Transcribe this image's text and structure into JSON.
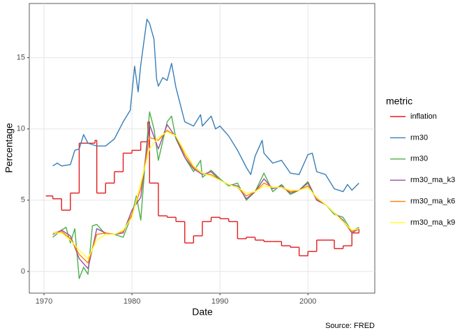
{
  "chart_data": {
    "type": "line",
    "x_label": "Date",
    "y_label": "Percentage",
    "caption": "Source: FRED",
    "legend_title": "metric",
    "legend_position": "right",
    "xlim": [
      1968.33,
      2007.6
    ],
    "ylim": [
      -1.52,
      18.8
    ],
    "xticks": [
      1970,
      1980,
      1990,
      2000
    ],
    "yticks": [
      0,
      5,
      10,
      15
    ],
    "grid": true,
    "series": [
      {
        "name": "inflation",
        "color": "#e41a1c",
        "step": true,
        "x": [
          1970.2,
          1971,
          1972,
          1973,
          1974,
          1975.8,
          1976,
          1977,
          1978,
          1979,
          1980,
          1981,
          1981.8,
          1982,
          1983,
          1984,
          1985,
          1986,
          1987,
          1988,
          1989,
          1990,
          1991,
          1992,
          1993,
          1994,
          1995,
          1996,
          1997,
          1998,
          1999,
          2000,
          2001,
          2002,
          2003,
          2004,
          2005,
          2005.8
        ],
        "values": [
          5.3,
          5.1,
          4.3,
          5.5,
          9.0,
          9.2,
          5.5,
          6.2,
          7.0,
          8.3,
          8.5,
          9.1,
          10.5,
          6.2,
          3.9,
          3.8,
          3.5,
          2.0,
          2.5,
          3.5,
          3.8,
          3.7,
          3.5,
          2.3,
          2.4,
          2.2,
          2.1,
          2.1,
          1.8,
          1.7,
          1.1,
          1.4,
          2.2,
          2.2,
          1.6,
          1.8,
          2.7,
          3.0
        ]
      },
      {
        "name": "rm30",
        "color": "#377eb8",
        "x": [
          1971,
          1971.5,
          1972,
          1973,
          1973.5,
          1974,
          1974.5,
          1975,
          1976,
          1977,
          1978,
          1979,
          1979.8,
          1980.3,
          1980.7,
          1981,
          1981.7,
          1982,
          1982.5,
          1982.8,
          1983,
          1983.5,
          1984,
          1984.5,
          1985,
          1986,
          1987,
          1987.8,
          1988,
          1989,
          1989.5,
          1990,
          1991,
          1992,
          1993,
          1993.5,
          1994,
          1994.8,
          1995,
          1996,
          1997,
          1998,
          1999,
          2000,
          2000.5,
          2001,
          2002,
          2003,
          2004,
          2004.5,
          2005,
          2005.8
        ],
        "values": [
          7.4,
          7.6,
          7.4,
          7.5,
          8.5,
          8.6,
          9.6,
          9.0,
          8.8,
          8.8,
          9.3,
          10.5,
          11.3,
          14.4,
          12.6,
          14.5,
          17.7,
          17.4,
          16.3,
          13.5,
          13.0,
          13.6,
          13.4,
          14.6,
          12.9,
          10.5,
          10.2,
          11.0,
          10.2,
          10.9,
          10.0,
          10.2,
          9.5,
          8.5,
          7.3,
          6.8,
          8.1,
          9.2,
          8.3,
          7.6,
          7.8,
          6.9,
          6.8,
          8.2,
          8.3,
          7.0,
          6.8,
          5.8,
          5.6,
          6.1,
          5.7,
          6.2
        ]
      },
      {
        "name": "rm30",
        "color": "#4daf4a",
        "x": [
          1971,
          1972,
          1972.5,
          1973,
          1973.5,
          1974,
          1974.5,
          1975,
          1975.5,
          1976,
          1977,
          1978,
          1979,
          1980,
          1980.5,
          1981,
          1981.5,
          1982,
          1982.5,
          1983,
          1984,
          1984.5,
          1985,
          1986,
          1987,
          1987.8,
          1988,
          1989,
          1990,
          1991,
          1992,
          1993,
          1994,
          1995,
          1996,
          1997,
          1998,
          1999,
          2000,
          2001,
          2002,
          2003,
          2004,
          2004.5,
          2005,
          2005.8
        ],
        "values": [
          2.4,
          2.9,
          3.1,
          2.0,
          3.0,
          -0.5,
          0.3,
          -0.2,
          3.2,
          3.3,
          2.6,
          2.6,
          2.4,
          4.0,
          5.3,
          3.6,
          7.7,
          11.2,
          10.0,
          7.8,
          10.5,
          10.9,
          9.3,
          8.0,
          7.0,
          7.8,
          6.6,
          7.1,
          6.5,
          6.0,
          6.2,
          5.0,
          5.6,
          6.9,
          5.6,
          6.1,
          5.4,
          5.7,
          6.3,
          5.0,
          4.7,
          4.0,
          3.8,
          3.3,
          2.8,
          3.1
        ]
      },
      {
        "name": "rm30_ma_k3",
        "color": "#984ea3",
        "x": [
          1971,
          1972,
          1973,
          1974,
          1975,
          1976,
          1977,
          1978,
          1979,
          1980,
          1981,
          1982,
          1983,
          1984,
          1985,
          1986,
          1987,
          1988,
          1989,
          1990,
          1991,
          1992,
          1993,
          1994,
          1995,
          1996,
          1997,
          1998,
          1999,
          2000,
          2001,
          2002,
          2003,
          2004,
          2005,
          2005.8
        ],
        "values": [
          2.6,
          2.9,
          2.5,
          0.9,
          0.2,
          3.0,
          2.7,
          2.6,
          2.7,
          4.3,
          5.2,
          10.3,
          8.6,
          10.3,
          9.4,
          8.0,
          7.2,
          6.8,
          7.0,
          6.4,
          6.1,
          6.0,
          5.1,
          5.6,
          6.5,
          5.8,
          6.0,
          5.5,
          5.7,
          6.2,
          5.0,
          4.7,
          4.1,
          3.6,
          2.7,
          3.0
        ]
      },
      {
        "name": "rm30_ma_k6",
        "color": "#ff7f00",
        "x": [
          1971,
          1972,
          1973,
          1974,
          1975,
          1976,
          1977,
          1978,
          1979,
          1980,
          1981,
          1982,
          1983,
          1984,
          1985,
          1986,
          1987,
          1988,
          1989,
          1990,
          1991,
          1992,
          1993,
          1994,
          1995,
          1996,
          1997,
          1998,
          1999,
          2000,
          2001,
          2002,
          2003,
          2004,
          2005,
          2005.8
        ],
        "values": [
          2.7,
          2.8,
          2.3,
          1.2,
          0.6,
          2.6,
          2.7,
          2.6,
          2.8,
          4.0,
          5.8,
          9.4,
          9.2,
          9.9,
          9.5,
          8.2,
          7.3,
          6.9,
          6.8,
          6.4,
          6.1,
          5.9,
          5.3,
          5.6,
          6.2,
          5.9,
          5.9,
          5.6,
          5.7,
          6.0,
          5.1,
          4.7,
          4.1,
          3.5,
          2.8,
          3.0
        ]
      },
      {
        "name": "rm30_ma_k9",
        "color": "#ffff33",
        "x": [
          1971,
          1972,
          1973,
          1974,
          1975,
          1976,
          1977,
          1978,
          1979,
          1980,
          1981,
          1982,
          1983,
          1984,
          1985,
          1986,
          1987,
          1988,
          1989,
          1990,
          1991,
          1992,
          1993,
          1994,
          1995,
          1996,
          1997,
          1998,
          1999,
          2000,
          2001,
          2002,
          2003,
          2004,
          2005,
          2005.8
        ],
        "values": [
          2.7,
          2.7,
          2.2,
          1.5,
          0.9,
          2.2,
          2.6,
          2.6,
          2.9,
          3.8,
          6.2,
          8.6,
          9.4,
          9.8,
          9.5,
          8.4,
          7.4,
          6.9,
          6.7,
          6.4,
          6.1,
          5.9,
          5.5,
          5.6,
          6.0,
          5.9,
          5.9,
          5.7,
          5.7,
          5.9,
          5.2,
          4.7,
          4.1,
          3.5,
          2.9,
          3.0
        ]
      }
    ]
  }
}
